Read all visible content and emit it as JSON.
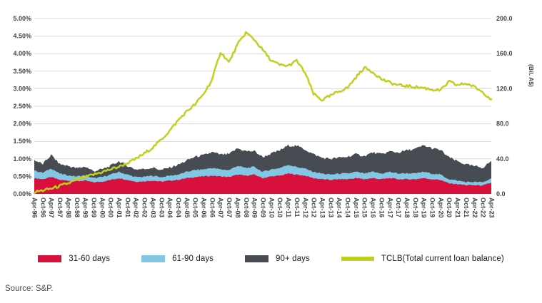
{
  "source": {
    "text": "Source: S&P."
  },
  "chart_data": {
    "type": "combo (stacked area + line)",
    "title": "",
    "legend_position": "bottom",
    "grid": true,
    "grid_color": "#d9d9d9",
    "categories": [
      "Apr-96",
      "Oct-96",
      "Apr-97",
      "Oct-97",
      "Apr-98",
      "Oct-98",
      "Apr-99",
      "Oct-99",
      "Apr-00",
      "Oct-00",
      "Apr-01",
      "Oct-01",
      "Apr-02",
      "Oct-02",
      "Apr-03",
      "Oct-03",
      "Apr-04",
      "Oct-04",
      "Apr-05",
      "Oct-05",
      "Apr-06",
      "Oct-06",
      "Apr-07",
      "Oct-07",
      "Apr-08",
      "Oct-08",
      "Apr-09",
      "Oct-09",
      "Apr-10",
      "Oct-10",
      "Apr-11",
      "Oct-11",
      "Apr-12",
      "Oct-12",
      "Apr-13",
      "Oct-13",
      "Apr-14",
      "Oct-14",
      "Apr-15",
      "Oct-15",
      "Apr-16",
      "Oct-16",
      "Apr-17",
      "Oct-17",
      "Apr-18",
      "Oct-18",
      "Apr-19",
      "Oct-19",
      "Apr-20",
      "Oct-20",
      "Apr-21",
      "Oct-21",
      "Apr-22",
      "Oct-22",
      "Apr-23"
    ],
    "left_axis": {
      "unit": "%",
      "min": 0,
      "max": 5,
      "tick_labels": [
        "5.00%",
        "4.50%",
        "4.00%",
        "3.50%",
        "3.00%",
        "2.50%",
        "2.00%",
        "1.50%",
        "1.00%",
        "0.50%",
        "0.00%"
      ]
    },
    "right_axis": {
      "title": "(Bil. A$)",
      "min": 0,
      "max": 200,
      "tick_labels": [
        "200.0",
        "160.0",
        "120.0",
        "80.0",
        "40.0",
        "0.0"
      ]
    },
    "series": [
      {
        "name": "31-60 days",
        "type": "stacked-area",
        "axis": "left",
        "unit": "%",
        "color": "#d7113c",
        "values": [
          0.45,
          0.42,
          0.48,
          0.4,
          0.38,
          0.36,
          0.38,
          0.33,
          0.35,
          0.4,
          0.45,
          0.4,
          0.35,
          0.36,
          0.38,
          0.35,
          0.38,
          0.4,
          0.45,
          0.48,
          0.5,
          0.52,
          0.5,
          0.48,
          0.55,
          0.52,
          0.55,
          0.45,
          0.5,
          0.52,
          0.58,
          0.55,
          0.52,
          0.45,
          0.42,
          0.4,
          0.42,
          0.42,
          0.45,
          0.42,
          0.45,
          0.42,
          0.45,
          0.42,
          0.42,
          0.42,
          0.45,
          0.42,
          0.4,
          0.3,
          0.28,
          0.25,
          0.25,
          0.24,
          0.32
        ]
      },
      {
        "name": "61-90 days",
        "type": "stacked-area",
        "axis": "left",
        "unit": "%",
        "color": "#82c7e4",
        "values": [
          0.22,
          0.18,
          0.25,
          0.18,
          0.15,
          0.14,
          0.15,
          0.12,
          0.13,
          0.15,
          0.18,
          0.15,
          0.13,
          0.13,
          0.14,
          0.13,
          0.14,
          0.15,
          0.18,
          0.2,
          0.2,
          0.22,
          0.2,
          0.2,
          0.25,
          0.22,
          0.22,
          0.18,
          0.2,
          0.22,
          0.25,
          0.22,
          0.2,
          0.18,
          0.16,
          0.15,
          0.16,
          0.16,
          0.18,
          0.16,
          0.18,
          0.16,
          0.18,
          0.16,
          0.17,
          0.16,
          0.18,
          0.16,
          0.15,
          0.12,
          0.1,
          0.09,
          0.09,
          0.09,
          0.12
        ]
      },
      {
        "name": "90+ days",
        "type": "stacked-area",
        "axis": "left",
        "unit": "%",
        "color": "#474c52",
        "values": [
          0.3,
          0.25,
          0.38,
          0.27,
          0.27,
          0.23,
          0.25,
          0.2,
          0.22,
          0.25,
          0.3,
          0.25,
          0.22,
          0.22,
          0.23,
          0.2,
          0.23,
          0.28,
          0.32,
          0.38,
          0.4,
          0.45,
          0.42,
          0.45,
          0.5,
          0.48,
          0.45,
          0.42,
          0.45,
          0.5,
          0.55,
          0.6,
          0.55,
          0.5,
          0.45,
          0.45,
          0.45,
          0.48,
          0.5,
          0.5,
          0.55,
          0.55,
          0.58,
          0.6,
          0.65,
          0.7,
          0.75,
          0.72,
          0.7,
          0.62,
          0.55,
          0.5,
          0.45,
          0.42,
          0.5
        ]
      },
      {
        "name": "TCLB(Total current loan balance)",
        "type": "line",
        "axis": "right",
        "unit": "Bil. A$",
        "color": "#c1d020",
        "values": [
          2,
          4,
          6,
          9,
          12,
          16,
          19,
          22,
          25,
          28,
          31,
          35,
          40,
          46,
          53,
          62,
          72,
          84,
          94,
          102,
          114,
          130,
          162,
          150,
          170,
          184,
          176,
          164,
          152,
          147,
          146,
          152,
          138,
          114,
          107,
          112,
          117,
          121,
          133,
          144,
          139,
          131,
          127,
          124,
          123,
          122,
          121,
          119,
          118,
          128,
          124,
          126,
          122,
          116,
          108
        ]
      }
    ]
  }
}
